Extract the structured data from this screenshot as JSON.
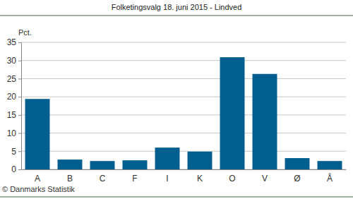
{
  "chart_data": {
    "type": "bar",
    "title": "Folketingsvalg 18. juni 2015 - Lindved",
    "y_label": "Pct.",
    "source": "© Danmarks Statistik",
    "categories": [
      "A",
      "B",
      "C",
      "F",
      "I",
      "K",
      "O",
      "V",
      "Ø",
      "Å"
    ],
    "values": [
      19.4,
      2.7,
      2.3,
      2.5,
      6.0,
      4.9,
      30.9,
      26.3,
      3.1,
      2.3
    ],
    "color": "#005f8f",
    "ylim": [
      0,
      35
    ],
    "yticks": [
      0,
      5,
      10,
      15,
      20,
      25,
      30,
      35
    ],
    "grid": true
  }
}
